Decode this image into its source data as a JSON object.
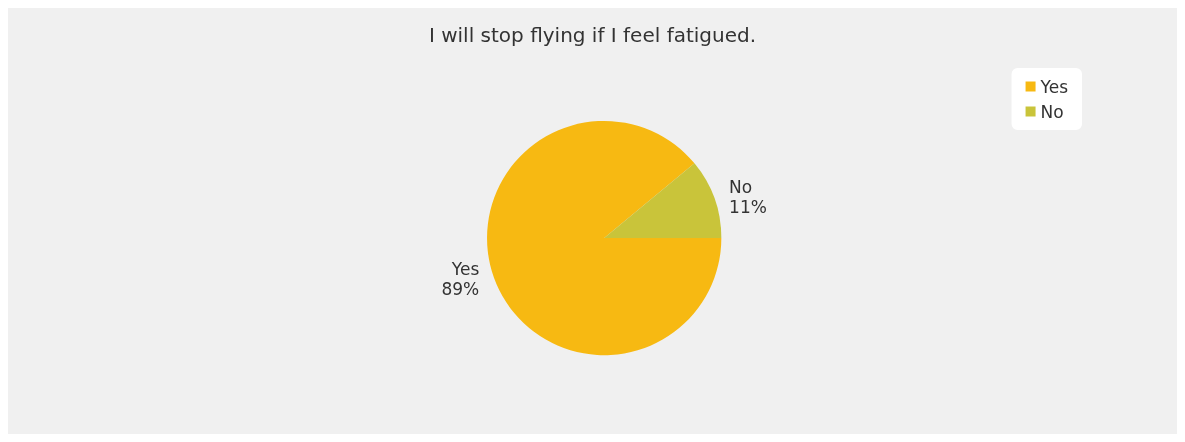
{
  "chart_data": {
    "type": "pie",
    "title": "I will stop flying if I feel fatigued.",
    "categories": [
      "Yes",
      "No"
    ],
    "values": [
      89,
      11
    ],
    "colors": [
      "#f7b912",
      "#c9c43a"
    ],
    "value_labels": [
      "89%",
      "11%"
    ],
    "legend": "top right"
  }
}
